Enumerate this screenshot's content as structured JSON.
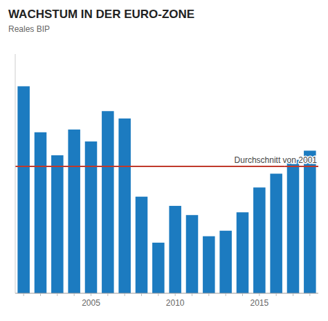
{
  "chart_data": {
    "type": "bar",
    "title": "WACHSTUM IN DER EURO-ZONE",
    "subtitle": "Reales BIP",
    "categories": [
      null,
      null,
      null,
      null,
      "2005",
      null,
      null,
      null,
      null,
      "2010",
      null,
      null,
      null,
      null,
      "2015",
      null,
      null,
      null
    ],
    "values": [
      22.5,
      17.5,
      15.0,
      17.8,
      16.5,
      19.8,
      19.0,
      10.5,
      5.5,
      9.5,
      8.5,
      6.2,
      6.8,
      8.8,
      11.5,
      13.0,
      14.5,
      15.5
    ],
    "color": "#1c7bc0",
    "ylim": [
      0,
      26
    ],
    "yticks": [],
    "grid": false,
    "tick_labels": "x",
    "reference_lines": [
      {
        "value": 13.8,
        "label": "Durchschnitt von 2001",
        "color": "#c0392b"
      }
    ]
  }
}
